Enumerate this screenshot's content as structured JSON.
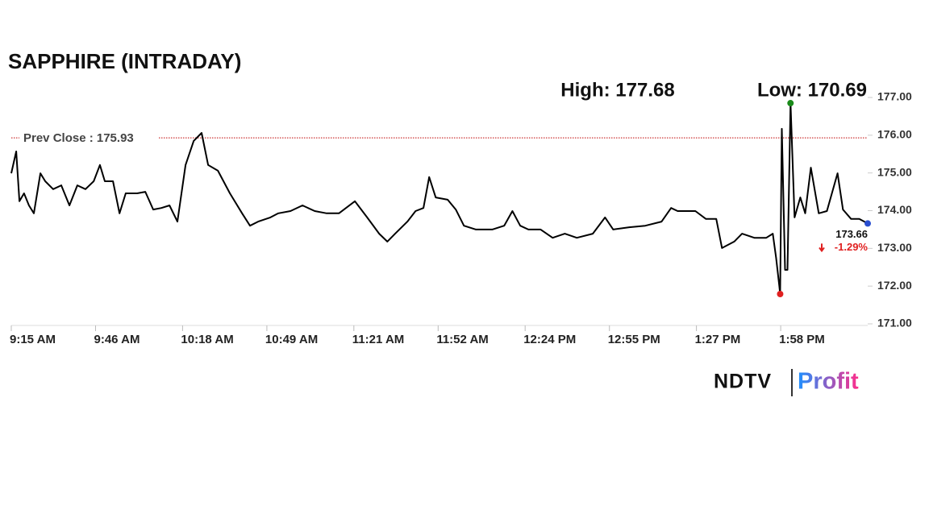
{
  "chart_data": {
    "type": "line",
    "title": "SAPPHIRE (INTRADAY)",
    "high_label": "High: 177.68",
    "low_label": "Low: 170.69",
    "prev_close": {
      "value": 175.93,
      "label": "Prev Close : 175.93"
    },
    "change": {
      "value": -1.29,
      "label": "-1.29%"
    },
    "brand": [
      "NDTV",
      "Profit"
    ],
    "xlim": [
      0,
      315
    ],
    "xticks": [
      {
        "value": 0,
        "label": "9:15 AM"
      },
      {
        "value": 31,
        "label": "9:46 AM"
      },
      {
        "value": 63,
        "label": "10:18 AM"
      },
      {
        "value": 94,
        "label": "10:49 AM"
      },
      {
        "value": 126,
        "label": "11:21 AM"
      },
      {
        "value": 157,
        "label": "11:52 AM"
      },
      {
        "value": 189,
        "label": "12:24 PM"
      },
      {
        "value": 220,
        "label": "12:55 PM"
      },
      {
        "value": 252,
        "label": "1:27 PM"
      },
      {
        "value": 283,
        "label": "1:58 PM"
      }
    ],
    "ylim": [
      171,
      177.4
    ],
    "yticks": [
      {
        "value": 171,
        "label": "171.00"
      },
      {
        "value": 172,
        "label": "172.00"
      },
      {
        "value": 173,
        "label": "173.00"
      },
      {
        "value": 174,
        "label": "174.00"
      },
      {
        "value": 175,
        "label": "175.00"
      },
      {
        "value": 176,
        "label": "176.00"
      },
      {
        "value": 177,
        "label": "177.00"
      }
    ],
    "x": [
      0,
      1.8,
      3.0,
      4.7,
      6.5,
      8.3,
      10.7,
      12.5,
      15.4,
      18.4,
      21.4,
      24.3,
      27.3,
      30.3,
      32.6,
      34.4,
      37.4,
      39.8,
      42.1,
      46.3,
      49.3,
      52.2,
      55.2,
      58.2,
      61.1,
      64.1,
      67.1,
      70.0,
      72.4,
      76.0,
      80.4,
      84.9,
      87.8,
      90.8,
      95.3,
      98.2,
      102.7,
      107.1,
      111.6,
      116.0,
      120.5,
      126.4,
      130.9,
      135.3,
      138.3,
      141.2,
      145.7,
      148.7,
      151.6,
      153.7,
      156.1,
      160.5,
      163.5,
      166.5,
      170.9,
      176.9,
      181.3,
      184.3,
      187.2,
      190.2,
      194.7,
      199.1,
      203.6,
      208.0,
      213.9,
      218.4,
      221.4,
      227.3,
      233.2,
      239.2,
      242.7,
      245.1,
      251.6,
      255.5,
      259.3,
      261.4,
      265.9,
      268.8,
      273.3,
      277.7,
      280.1,
      281.3,
      282.5,
      282.8,
      283.4,
      284.6,
      285.5,
      286.6,
      288.1,
      290.2,
      292.0,
      294.1,
      297.0,
      300.0,
      303.9,
      305.9,
      308.9,
      311.9,
      315
    ],
    "series": [
      {
        "name": "SAPPHIRE",
        "color": "#000000",
        "values": [
          174.99,
          175.57,
          174.25,
          174.46,
          174.14,
          173.93,
          174.99,
          174.78,
          174.57,
          174.67,
          174.14,
          174.67,
          174.57,
          174.78,
          175.21,
          174.78,
          174.78,
          173.93,
          174.46,
          174.46,
          174.5,
          174.03,
          174.07,
          174.14,
          173.71,
          175.21,
          175.85,
          176.06,
          175.21,
          175.06,
          174.46,
          173.93,
          173.6,
          173.71,
          173.82,
          173.93,
          173.99,
          174.14,
          173.99,
          173.93,
          173.93,
          174.25,
          173.82,
          173.39,
          173.18,
          173.39,
          173.71,
          173.99,
          174.07,
          174.89,
          174.35,
          174.29,
          174.03,
          173.6,
          173.5,
          173.5,
          173.6,
          173.99,
          173.6,
          173.5,
          173.5,
          173.28,
          173.39,
          173.28,
          173.39,
          173.82,
          173.5,
          173.56,
          173.6,
          173.71,
          174.07,
          173.99,
          173.99,
          173.78,
          173.78,
          173.01,
          173.18,
          173.39,
          173.28,
          173.28,
          173.39,
          172.75,
          172.0,
          171.79,
          176.17,
          172.43,
          172.43,
          176.85,
          173.82,
          174.35,
          173.93,
          175.14,
          173.93,
          173.99,
          174.99,
          174.03,
          173.78,
          173.78,
          173.66
        ]
      }
    ],
    "high_color": "#1a8a1a",
    "low_color": "#e02020",
    "last_color": "#2a4fd0",
    "prev_close_color": "#c00000",
    "change_color": "#e02020"
  }
}
